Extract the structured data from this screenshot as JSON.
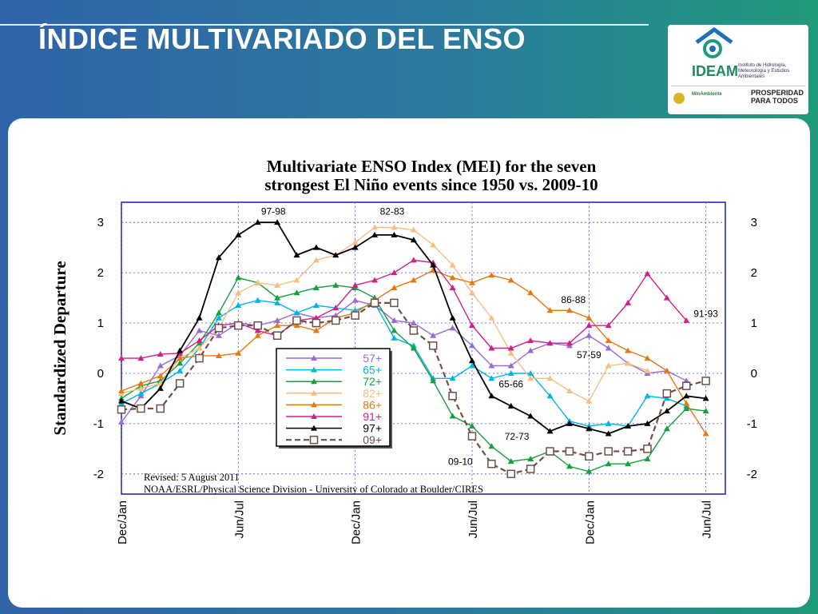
{
  "slide": {
    "title": "ÍNDICE MULTIVARIADO DEL ENSO",
    "logo": {
      "name": "IDEAM",
      "description": "Instituto de Hidrología, Meteorología y Estudios Ambientales",
      "partner1": "MinAmbiente",
      "partner2": "PROSPERIDAD PARA TODOS"
    }
  },
  "colors": {
    "background_left": "#2f63a8",
    "background_right": "#1f9a7a",
    "57+": "#9a6ad6",
    "65+": "#00b4e6",
    "72+": "#14a03c",
    "82+": "#f5be82",
    "86+": "#e6780f",
    "91+": "#d21e8c",
    "97+": "#000000",
    "09+": "#6e5046"
  },
  "chart_data": {
    "type": "line",
    "title": "Multivariate ENSO Index (MEI) for the seven strongest El Niño events since 1950 vs. 2009-10",
    "title_line1": "Multivariate ENSO Index (MEI) for the seven",
    "title_line2": "strongest El Niño events since 1950 vs. 2009-10",
    "ylabel": "Standardized Departure",
    "ylim": [
      -2.4,
      3.4
    ],
    "yticks": [
      3,
      2,
      1,
      0,
      -1,
      -2
    ],
    "ytick_labels": [
      "3",
      "2",
      "1",
      "0",
      "-1",
      "-2"
    ],
    "x_tick_labels": [
      "Dec/Jan",
      "Jun/Jul",
      "Dec/Jan",
      "Jun/Jul",
      "Dec/Jan",
      "Jun/Jul"
    ],
    "x_tick_indices": [
      0,
      6,
      12,
      18,
      24,
      30
    ],
    "xlim": [
      0,
      31
    ],
    "grid": true,
    "legend_position": "center-left",
    "revised_note": "Revised: 5 August 2011",
    "source_note": "NOAA/ESRL/Physical Science Division - University of Colorado at Boulder/CIRES",
    "annotations": [
      {
        "text": "97-98",
        "x": 7.8,
        "y": 3.15
      },
      {
        "text": "82-83",
        "x": 13.9,
        "y": 3.15
      },
      {
        "text": "86-88",
        "x": 23.2,
        "y": 1.4
      },
      {
        "text": "57-59",
        "x": 24.0,
        "y": 0.3
      },
      {
        "text": "65-66",
        "x": 20.0,
        "y": -0.28
      },
      {
        "text": "91-93",
        "x": 30.0,
        "y": 1.12
      },
      {
        "text": "72-73",
        "x": 20.3,
        "y": -1.32
      },
      {
        "text": "09-10",
        "x": 17.4,
        "y": -1.82
      }
    ],
    "series": [
      {
        "name": "57+",
        "marker": "triangle",
        "dashed": false,
        "values": [
          -0.97,
          -0.45,
          0.15,
          0.35,
          0.85,
          0.75,
          1.0,
          0.95,
          1.05,
          1.2,
          1.1,
          1.15,
          1.45,
          1.35,
          1.05,
          1.0,
          0.75,
          0.9,
          0.55,
          0.15,
          0.15,
          0.45,
          0.6,
          0.55,
          0.75,
          0.5,
          0.2,
          0.0,
          0.05,
          -0.15
        ]
      },
      {
        "name": "65+",
        "marker": "triangle",
        "dashed": false,
        "values": [
          -0.6,
          -0.4,
          -0.2,
          0.05,
          0.5,
          1.1,
          1.35,
          1.45,
          1.4,
          1.2,
          1.35,
          1.3,
          1.25,
          1.4,
          0.7,
          0.55,
          -0.1,
          -0.1,
          0.15,
          -0.1,
          0.0,
          0.0,
          -0.45,
          -0.95,
          -1.05,
          -1.0,
          -1.05,
          -0.45,
          -0.5,
          -0.65
        ]
      },
      {
        "name": "72+",
        "marker": "triangle",
        "dashed": false,
        "values": [
          -0.5,
          -0.25,
          -0.15,
          0.2,
          0.6,
          1.2,
          1.9,
          1.8,
          1.5,
          1.6,
          1.7,
          1.75,
          1.7,
          1.5,
          0.85,
          0.5,
          -0.15,
          -0.85,
          -1.05,
          -1.45,
          -1.75,
          -1.7,
          -1.55,
          -1.85,
          -1.95,
          -1.8,
          -1.8,
          -1.7,
          -1.1,
          -0.7,
          -0.75
        ]
      },
      {
        "name": "82+",
        "marker": "triangle",
        "dashed": false,
        "values": [
          -0.4,
          -0.3,
          -0.2,
          0.3,
          0.5,
          0.9,
          1.6,
          1.8,
          1.75,
          1.85,
          2.25,
          2.35,
          2.6,
          2.9,
          2.9,
          2.85,
          2.55,
          2.15,
          1.6,
          1.1,
          0.4,
          -0.1,
          -0.1,
          -0.35,
          -0.55,
          0.15,
          0.2,
          0.05
        ]
      },
      {
        "name": "86+",
        "marker": "triangle",
        "dashed": false,
        "values": [
          -0.35,
          -0.2,
          -0.05,
          0.3,
          0.35,
          0.35,
          0.4,
          0.75,
          0.95,
          0.95,
          0.85,
          1.1,
          1.2,
          1.45,
          1.7,
          1.85,
          2.05,
          1.9,
          1.8,
          1.95,
          1.85,
          1.6,
          1.25,
          1.25,
          1.1,
          0.65,
          0.45,
          0.3,
          0.05,
          -0.6,
          -1.2
        ]
      },
      {
        "name": "91+",
        "marker": "triangle",
        "dashed": false,
        "values": [
          0.3,
          0.3,
          0.38,
          0.4,
          0.65,
          0.95,
          1.0,
          0.85,
          0.75,
          1.05,
          1.1,
          1.3,
          1.75,
          1.85,
          2.0,
          2.25,
          2.2,
          1.7,
          0.95,
          0.5,
          0.5,
          0.65,
          0.6,
          0.6,
          0.95,
          0.95,
          1.4,
          1.98,
          1.5,
          1.05
        ]
      },
      {
        "name": "97+",
        "marker": "triangle",
        "dashed": false,
        "values": [
          -0.55,
          -0.7,
          -0.3,
          0.45,
          1.1,
          2.3,
          2.75,
          3.0,
          3.0,
          2.35,
          2.5,
          2.35,
          2.5,
          2.75,
          2.75,
          2.65,
          2.15,
          1.1,
          0.25,
          -0.45,
          -0.65,
          -0.85,
          -1.15,
          -1.0,
          -1.1,
          -1.2,
          -1.05,
          -1.0,
          -0.75,
          -0.45,
          -0.5
        ]
      },
      {
        "name": "09+",
        "marker": "square",
        "dashed": true,
        "values": [
          -0.72,
          -0.7,
          -0.7,
          -0.2,
          0.3,
          0.9,
          0.95,
          0.95,
          0.75,
          1.05,
          1.0,
          1.05,
          1.15,
          1.4,
          1.4,
          0.85,
          0.55,
          -0.45,
          -1.25,
          -1.8,
          -2.0,
          -1.9,
          -1.55,
          -1.55,
          -1.65,
          -1.55,
          -1.55,
          -1.5,
          -0.4,
          -0.25,
          -0.15
        ]
      }
    ]
  }
}
